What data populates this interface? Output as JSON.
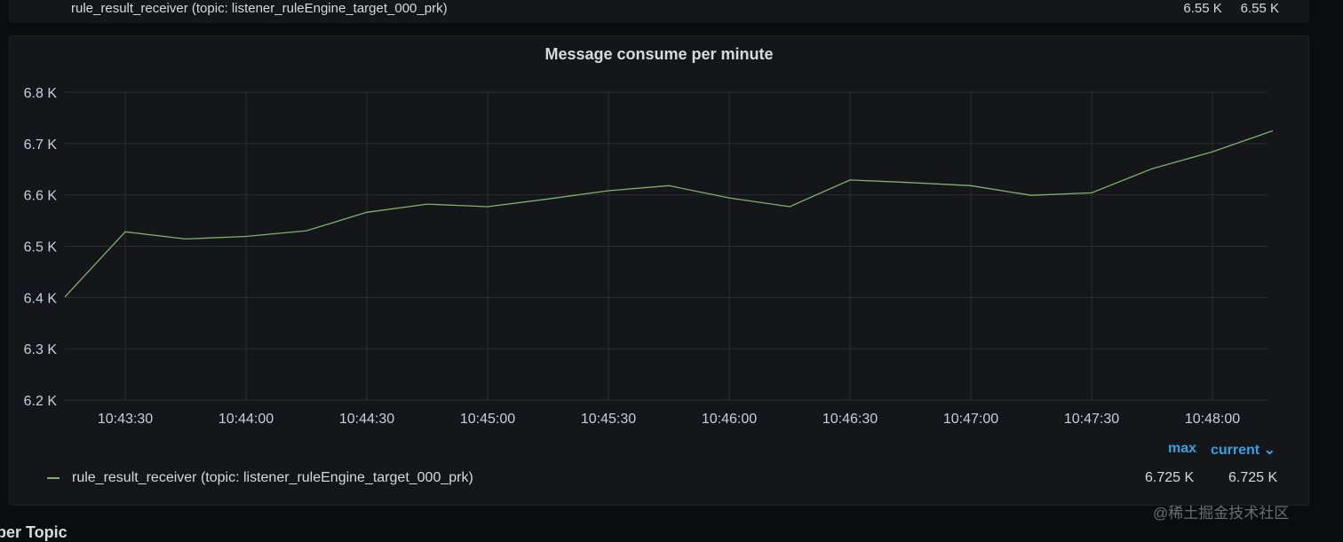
{
  "previous_panel": {
    "legend_text": "rule_result_receiver (topic: listener_ruleEngine_target_000_prk)",
    "values": "6.55 K     6.55 K"
  },
  "panel": {
    "title": "Message consume per minute",
    "legend": {
      "headers": {
        "max": "max",
        "current": "current ⌄"
      },
      "items": [
        {
          "name": "rule_result_receiver (topic: listener_ruleEngine_target_000_prk)",
          "max": "6.725 K",
          "current": "6.725 K",
          "color": "#7eb26d"
        }
      ]
    }
  },
  "section_title": "per Topic",
  "watermark": "@稀土掘金技术社区",
  "chart_data": {
    "type": "line",
    "title": "Message consume per minute",
    "x": [
      "10:43:15",
      "10:43:30",
      "10:43:45",
      "10:44:00",
      "10:44:15",
      "10:44:30",
      "10:44:45",
      "10:45:00",
      "10:45:15",
      "10:45:30",
      "10:45:45",
      "10:46:00",
      "10:46:15",
      "10:46:30",
      "10:46:45",
      "10:47:00",
      "10:47:15",
      "10:47:30",
      "10:47:45",
      "10:48:00",
      "10:48:15"
    ],
    "series": [
      {
        "name": "rule_result_receiver (topic: listener_ruleEngine_target_000_prk)",
        "color": "#7eb26d",
        "values": [
          6401,
          6528,
          6514,
          6519,
          6530,
          6566,
          6582,
          6577,
          6592,
          6608,
          6618,
          6594,
          6577,
          6629,
          6624,
          6618,
          6599,
          6604,
          6651,
          6684,
          6725
        ]
      }
    ],
    "xticks": [
      "10:43:30",
      "10:44:00",
      "10:44:30",
      "10:45:00",
      "10:45:30",
      "10:46:00",
      "10:46:30",
      "10:47:00",
      "10:47:30",
      "10:48:00"
    ],
    "yticks": [
      "6.2 K",
      "6.3 K",
      "6.4 K",
      "6.5 K",
      "6.6 K",
      "6.7 K",
      "6.8 K"
    ],
    "ylim": [
      6200,
      6800
    ],
    "grid": true,
    "legend_placement": "bottom"
  }
}
